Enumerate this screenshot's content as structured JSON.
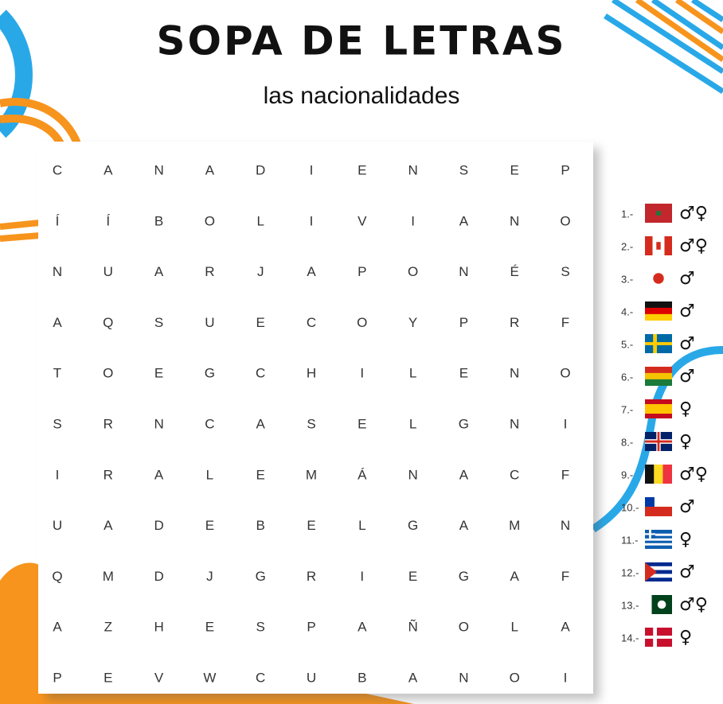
{
  "header": {
    "title": "SOPA DE LETRAS",
    "subtitle": "las nacionalidades"
  },
  "grid": {
    "rows": [
      [
        "C",
        "A",
        "N",
        "A",
        "D",
        "I",
        "E",
        "N",
        "S",
        "E",
        "P"
      ],
      [
        "Í",
        "Í",
        "B",
        "O",
        "L",
        "I",
        "V",
        "I",
        "A",
        "N",
        "O"
      ],
      [
        "N",
        "U",
        "A",
        "R",
        "J",
        "A",
        "P",
        "O",
        "N",
        "É",
        "S"
      ],
      [
        "A",
        "Q",
        "S",
        "U",
        "E",
        "C",
        "O",
        "Y",
        "P",
        "R",
        "F"
      ],
      [
        "T",
        "O",
        "E",
        "G",
        "C",
        "H",
        "I",
        "L",
        "E",
        "N",
        "O"
      ],
      [
        "S",
        "R",
        "N",
        "C",
        "A",
        "S",
        "E",
        "L",
        "G",
        "N",
        "I"
      ],
      [
        "I",
        "R",
        "A",
        "L",
        "E",
        "M",
        "Á",
        "N",
        "A",
        "C",
        "F"
      ],
      [
        "U",
        "A",
        "D",
        "E",
        "B",
        "E",
        "L",
        "G",
        "A",
        "M",
        "N"
      ],
      [
        "Q",
        "M",
        "D",
        "J",
        "G",
        "R",
        "I",
        "E",
        "G",
        "A",
        "F"
      ],
      [
        "A",
        "Z",
        "H",
        "E",
        "S",
        "P",
        "A",
        "Ñ",
        "O",
        "L",
        "A"
      ],
      [
        "P",
        "E",
        "V",
        "W",
        "C",
        "U",
        "B",
        "A",
        "N",
        "O",
        "I"
      ]
    ]
  },
  "clues": [
    {
      "number": "1.-",
      "genders": "♂♀"
    },
    {
      "number": "2.-",
      "genders": "♂♀"
    },
    {
      "number": "3.-",
      "genders": "♂"
    },
    {
      "number": "4.-",
      "genders": "♂"
    },
    {
      "number": "5.-",
      "genders": "♂"
    },
    {
      "number": "6.-",
      "genders": "♂"
    },
    {
      "number": "7.-",
      "genders": "♀"
    },
    {
      "number": "8.-",
      "genders": "♀"
    },
    {
      "number": "9.-",
      "genders": "♂♀"
    },
    {
      "number": "10.-",
      "genders": "♂"
    },
    {
      "number": "11.-",
      "genders": "♀"
    },
    {
      "number": "12.-",
      "genders": "♂"
    },
    {
      "number": "13.-",
      "genders": "♂♀"
    },
    {
      "number": "14.-",
      "genders": "♀"
    }
  ]
}
